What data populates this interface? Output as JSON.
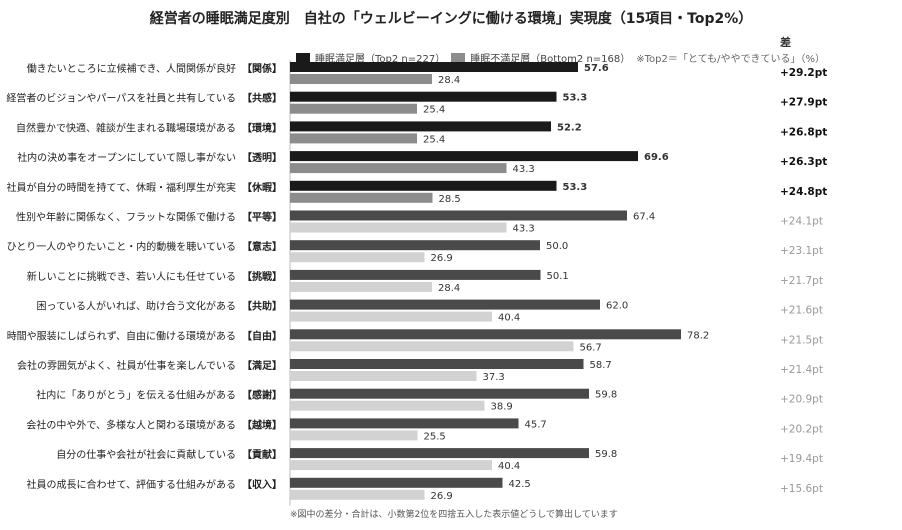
{
  "chart_data": {
    "type": "bar",
    "title": "経営者の睡眠満足度別　自社の「ウェルビーイングに働ける環境」実現度（15項目・Top2%）",
    "legend": {
      "series1_label": "睡眠満足層（Top2 n=227）",
      "series2_label": "睡眠不満足層（Bottom2 n=168）",
      "note": "※Top2＝「とても/ややできている」（%）"
    },
    "diff_header": "差",
    "footnote": "※図中の差分・合計は、小数第2位を四捨五入した表示値どうしで算出しています",
    "xlim": [
      0,
      100
    ],
    "categories": [
      {
        "label": "働きたいところに立候補でき、人間関係が良好",
        "tag": "【関係】"
      },
      {
        "label": "経営者のビジョンやパーパスを社員と共有している",
        "tag": "【共感】"
      },
      {
        "label": "自然豊かで快適、雑談が生まれる職場環境がある",
        "tag": "【環境】"
      },
      {
        "label": "社内の決め事をオープンにしていて隠し事がない",
        "tag": "【透明】"
      },
      {
        "label": "社員が自分の時間を持てて、休暇・福利厚生が充実",
        "tag": "【休暇】"
      },
      {
        "label": "性別や年齢に関係なく、フラットな関係で働ける",
        "tag": "【平等】"
      },
      {
        "label": "ひとり一人のやりたいこと・内的動機を聴いている",
        "tag": "【意志】"
      },
      {
        "label": "新しいことに挑戦でき、若い人にも任せている",
        "tag": "【挑戦】"
      },
      {
        "label": "困っている人がいれば、助け合う文化がある",
        "tag": "【共助】"
      },
      {
        "label": "時間や服装にしばられず、自由に働ける環境がある",
        "tag": "【自由】"
      },
      {
        "label": "会社の雰囲気がよく、社員が仕事を楽しんでいる",
        "tag": "【満足】"
      },
      {
        "label": "社内に「ありがとう」を伝える仕組みがある",
        "tag": "【感謝】"
      },
      {
        "label": "会社の中や外で、多様な人と関わる環境がある",
        "tag": "【越境】"
      },
      {
        "label": "自分の仕事や会社が社会に貢献している",
        "tag": "【貢献】"
      },
      {
        "label": "社員の成長に合わせて、評価する仕組みがある",
        "tag": "【収入】"
      }
    ],
    "series": [
      {
        "name": "睡眠満足層（Top2 n=227）",
        "values": [
          57.6,
          53.3,
          52.2,
          69.6,
          53.3,
          67.4,
          50.0,
          50.1,
          62.0,
          78.2,
          58.7,
          59.8,
          45.7,
          59.8,
          42.5
        ]
      },
      {
        "name": "睡眠不満足層（Bottom2 n=168）",
        "values": [
          28.4,
          25.4,
          25.4,
          43.3,
          28.5,
          43.3,
          26.9,
          28.4,
          40.4,
          56.7,
          37.3,
          38.9,
          25.5,
          40.4,
          26.9
        ]
      }
    ],
    "diffs": [
      "+29.2pt",
      "+27.9pt",
      "+26.8pt",
      "+26.3pt",
      "+24.8pt",
      "+24.1pt",
      "+23.1pt",
      "+21.7pt",
      "+21.6pt",
      "+21.5pt",
      "+21.4pt",
      "+20.9pt",
      "+20.2pt",
      "+19.4pt",
      "+15.6pt"
    ],
    "highlight_top_n": 5,
    "colors": {
      "series1_highlight": "#1a1a1a",
      "series1_normal": "#4a4a4a",
      "series2_highlight": "#8c8c8c",
      "series2_normal": "#d2d2d2",
      "diff_highlight": "#111111",
      "diff_normal": "#999999"
    }
  }
}
